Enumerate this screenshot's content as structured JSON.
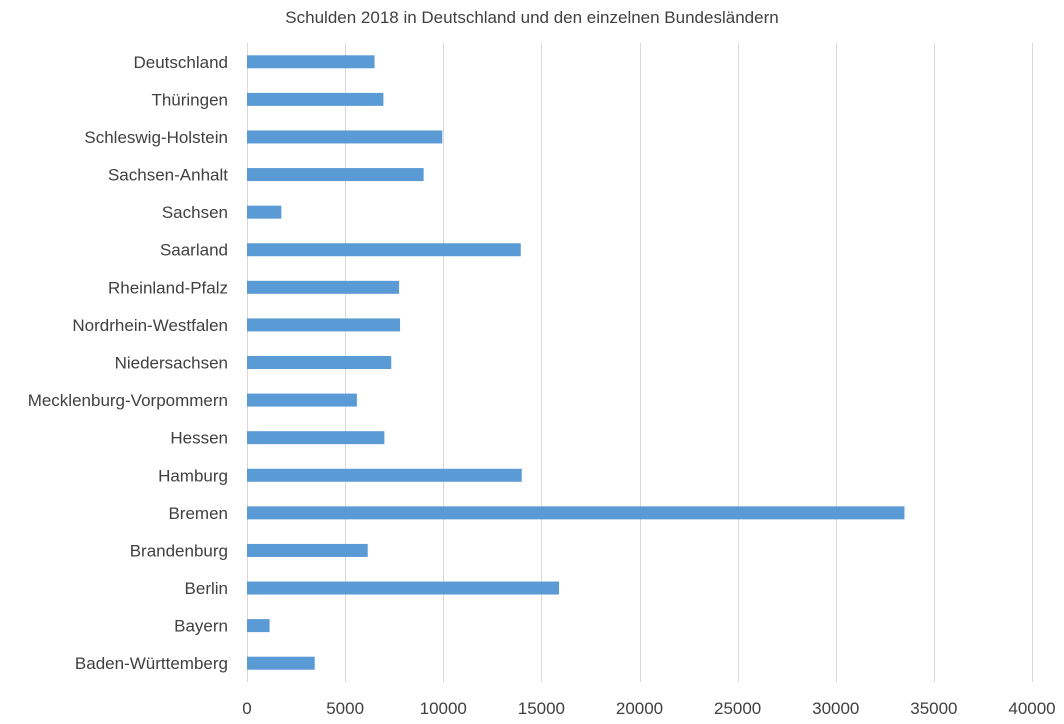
{
  "chart_data": {
    "type": "bar",
    "orientation": "horizontal",
    "title": "Schulden 2018  in Deutschland und den einzelnen Bundesländern",
    "categories": [
      "Deutschland",
      "Thüringen",
      "Schleswig-Holstein",
      "Sachsen-Anhalt",
      "Sachsen",
      "Saarland",
      "Rheinland-Pfalz",
      "Nordrhein-Westfalen",
      "Niedersachsen",
      "Mecklenburg-Vorpommern",
      "Hessen",
      "Hamburg",
      "Bremen",
      "Brandenburg",
      "Berlin",
      "Bayern",
      "Baden-Württemberg"
    ],
    "values": [
      6500,
      6950,
      9950,
      9000,
      1750,
      13950,
      7750,
      7800,
      7350,
      5600,
      7000,
      14000,
      33500,
      6150,
      15900,
      1150,
      3450
    ],
    "xlim": [
      0,
      40000
    ],
    "xticks": [
      "0",
      "5000",
      "10000",
      "15000",
      "20000",
      "25000",
      "30000",
      "35000",
      "40000"
    ],
    "xtick_values": [
      0,
      5000,
      10000,
      15000,
      20000,
      25000,
      30000,
      35000,
      40000
    ],
    "grid": true,
    "bar_color": "#5b9bd5",
    "grid_color": "#d9d9d9",
    "text_color": "#404040"
  }
}
